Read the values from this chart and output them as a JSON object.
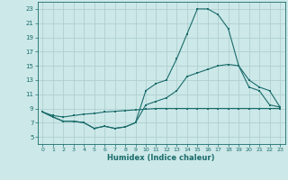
{
  "xlabel": "Humidex (Indice chaleur)",
  "bg_color": "#cce8e8",
  "grid_color": "#b0d0d0",
  "line_color": "#1a6b6b",
  "xlim": [
    -0.5,
    23.5
  ],
  "ylim": [
    4,
    24
  ],
  "xticks": [
    0,
    1,
    2,
    3,
    4,
    5,
    6,
    7,
    8,
    9,
    10,
    11,
    12,
    13,
    14,
    15,
    16,
    17,
    18,
    19,
    20,
    21,
    22,
    23
  ],
  "yticks": [
    5,
    7,
    9,
    11,
    13,
    15,
    17,
    19,
    21,
    23
  ],
  "series1_x": [
    0,
    1,
    2,
    3,
    4,
    5,
    6,
    7,
    8,
    9,
    10,
    11,
    12,
    13,
    14,
    15,
    16,
    17,
    18,
    19,
    20,
    21,
    22,
    23
  ],
  "series1_y": [
    8.5,
    7.8,
    7.2,
    7.2,
    7.0,
    6.2,
    6.5,
    6.2,
    6.4,
    7.0,
    11.5,
    12.5,
    13.0,
    16.0,
    19.5,
    23.0,
    23.0,
    22.2,
    20.2,
    15.0,
    12.0,
    11.5,
    9.5,
    9.2
  ],
  "series2_x": [
    0,
    1,
    2,
    3,
    4,
    5,
    6,
    7,
    8,
    9,
    10,
    11,
    12,
    13,
    14,
    15,
    16,
    17,
    18,
    19,
    20,
    21,
    22,
    23
  ],
  "series2_y": [
    8.5,
    7.8,
    7.2,
    7.2,
    7.0,
    6.2,
    6.5,
    6.2,
    6.4,
    7.0,
    9.5,
    10.0,
    10.5,
    11.5,
    13.5,
    14.0,
    14.5,
    15.0,
    15.2,
    15.0,
    13.0,
    12.0,
    11.5,
    9.2
  ],
  "series3_x": [
    0,
    1,
    2,
    3,
    4,
    5,
    6,
    7,
    8,
    9,
    10,
    11,
    12,
    13,
    14,
    15,
    16,
    17,
    18,
    19,
    20,
    21,
    22,
    23
  ],
  "series3_y": [
    8.5,
    8.0,
    7.8,
    8.0,
    8.2,
    8.3,
    8.5,
    8.6,
    8.7,
    8.8,
    8.9,
    9.0,
    9.0,
    9.0,
    9.0,
    9.0,
    9.0,
    9.0,
    9.0,
    9.0,
    9.0,
    9.0,
    9.0,
    9.0
  ]
}
